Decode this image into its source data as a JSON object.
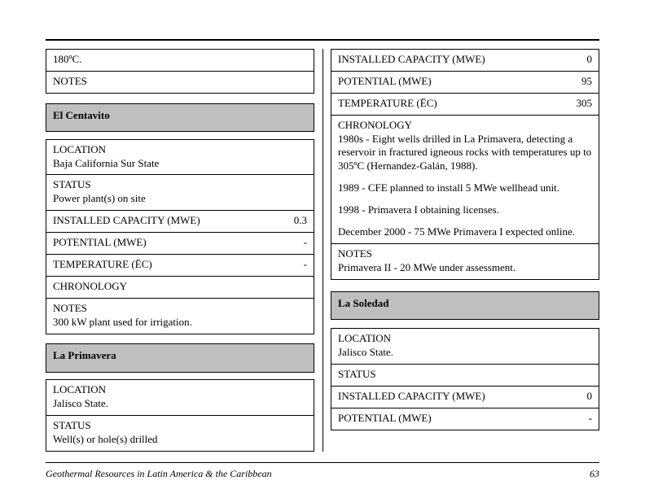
{
  "colors": {
    "header_bg": "#bfbfbf",
    "rule": "#000000"
  },
  "leftTop": {
    "rows": [
      {
        "text": "180ºC."
      },
      {
        "text": "NOTES"
      }
    ]
  },
  "elCentavito": {
    "title": "El Centavito",
    "location_label": "LOCATION",
    "location_value": "Baja California Sur State",
    "status_label": "STATUS",
    "status_value": "Power plant(s) on site",
    "capacity_label": "INSTALLED CAPACITY (MWE)",
    "capacity_value": "0.3",
    "potential_label": "POTENTIAL (MWE)",
    "potential_value": "-",
    "temp_label": "TEMPERATURE (ËC)",
    "temp_value": "-",
    "chronology_label": "CHRONOLOGY",
    "notes_label": "NOTES",
    "notes_value": "300 kW plant used for irrigation."
  },
  "laPrimaveraLeft": {
    "title": "La Primavera",
    "location_label": "LOCATION",
    "location_value": "Jalisco State.",
    "status_label": "STATUS",
    "status_value": "Well(s) or hole(s) drilled"
  },
  "laPrimaveraRight": {
    "capacity_label": "INSTALLED CAPACITY (MWE)",
    "capacity_value": "0",
    "potential_label": "POTENTIAL (MWE)",
    "potential_value": "95",
    "temp_label": "TEMPERATURE (ËC)",
    "temp_value": "305",
    "chronology_label": "CHRONOLOGY",
    "chron1": "1980s - Eight wells drilled in La Primavera, detecting a reservoir in fractured igneous rocks with temperatures up to 305ºC (Hernandez-Galán, 1988).",
    "chron2": "1989 - CFE planned to install 5 MWe wellhead unit.",
    "chron3": "1998 - Primavera I obtaining licenses.",
    "chron4": "December 2000 - 75 MWe Primavera I expected online.",
    "notes_label": "NOTES",
    "notes_value": "Primavera II - 20 MWe under assessment."
  },
  "laSoledad": {
    "title": "La Soledad",
    "location_label": "LOCATION",
    "location_value": "Jalisco State.",
    "status_label": "STATUS",
    "capacity_label": "INSTALLED CAPACITY (MWE)",
    "capacity_value": "0",
    "potential_label": "POTENTIAL (MWE)",
    "potential_value": "-"
  },
  "footer": {
    "title": "Geothermal Resources in Latin America & the Caribbean",
    "page": "63"
  }
}
